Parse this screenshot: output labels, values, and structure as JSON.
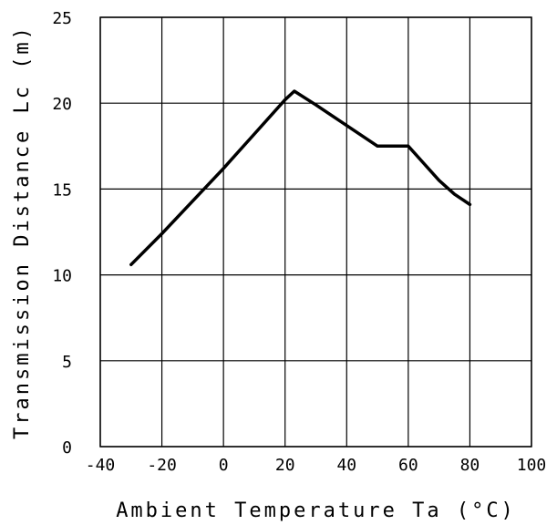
{
  "chart_data": {
    "type": "line",
    "title": "",
    "xlabel": "Ambient Temperature Ta (°C)",
    "ylabel": "Transmission Distance Lc (m)",
    "xlim": [
      -40,
      100
    ],
    "ylim": [
      0,
      25
    ],
    "x_ticks": [
      -40,
      -20,
      0,
      20,
      40,
      60,
      80,
      100
    ],
    "y_ticks": [
      0,
      5,
      10,
      15,
      20,
      25
    ],
    "x_tick_labels": [
      "-40",
      "-20",
      "0",
      "20",
      "40",
      "60",
      "80",
      "100"
    ],
    "y_tick_labels": [
      "0",
      "5",
      "10",
      "15",
      "20",
      "25"
    ],
    "grid": true,
    "series": [
      {
        "color": "#000000",
        "points": [
          [
            -30,
            10.6
          ],
          [
            -20,
            12.4
          ],
          [
            -10,
            14.3
          ],
          [
            0,
            16.2
          ],
          [
            10,
            18.2
          ],
          [
            20,
            20.2
          ],
          [
            23,
            20.7
          ],
          [
            30,
            19.9
          ],
          [
            40,
            18.7
          ],
          [
            50,
            17.5
          ],
          [
            60,
            17.5
          ],
          [
            65,
            16.5
          ],
          [
            70,
            15.5
          ],
          [
            75,
            14.7
          ],
          [
            80,
            14.1
          ]
        ]
      }
    ]
  }
}
